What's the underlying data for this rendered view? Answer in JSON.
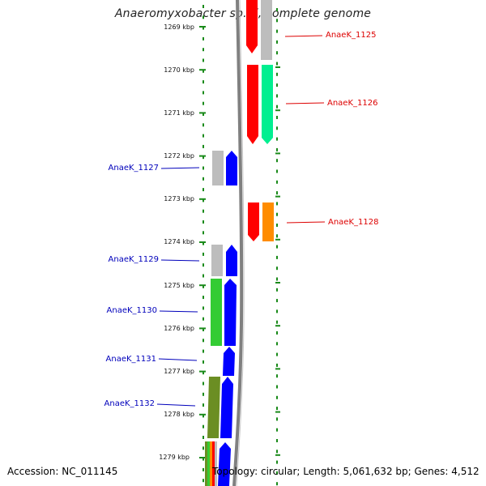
{
  "title": "Anaeromyxobacter sp. K, complete genome",
  "footer": {
    "accession": "Accession: NC_011145",
    "summary": "Topology: circular; Length: 5,061,632 bp; Genes: 4,512"
  },
  "colors": {
    "gray": "#bdbdbd",
    "red": "#ff0000",
    "green": "#00ef90",
    "orange": "#ff8c00",
    "blue": "#0000ff",
    "lightgreen": "#33cc33",
    "olive": "#6b8e23",
    "label_red": "#dd0000",
    "label_blue": "#0000bb",
    "ruler": "#1a8a1a",
    "backbone": "#808080"
  },
  "scale": {
    "ticks": [
      "1269 kbp",
      "1270 kbp",
      "1271 kbp",
      "1272 kbp",
      "1273 kbp",
      "1274 kbp",
      "1275 kbp",
      "1276 kbp",
      "1277 kbp",
      "1278 kbp",
      "1279 kbp"
    ]
  },
  "genes": {
    "right": [
      {
        "label": "AnaeK_1125"
      },
      {
        "label": "AnaeK_1126"
      },
      {
        "label": "AnaeK_1128"
      }
    ],
    "left": [
      {
        "label": "AnaeK_1127"
      },
      {
        "label": "AnaeK_1129"
      },
      {
        "label": "AnaeK_1130"
      },
      {
        "label": "AnaeK_1131"
      },
      {
        "label": "AnaeK_1132"
      }
    ]
  }
}
